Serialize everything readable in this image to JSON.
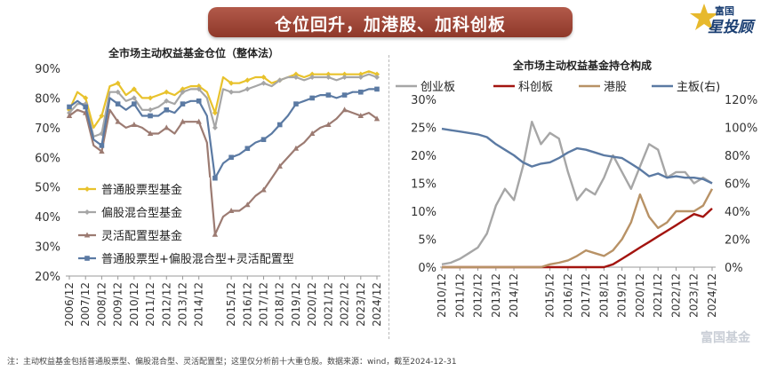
{
  "banner": {
    "title": "仓位回升，加港股、加科创板"
  },
  "brand": {
    "top": "富国",
    "main": "星投顾"
  },
  "watermark": "富国基金",
  "footnote": "注：主动权益基金包括普通股票型、偏股混合型、灵活配置型；这里仅分析前十大重仓股。数据来源：wind，截至2024-12-31",
  "colors": {
    "banner": "#9c4435",
    "brand": "#1b3f73"
  },
  "chart_data": [
    {
      "type": "line",
      "title": "全市场主动权益基金仓位（整体法）",
      "x": [
        "2006/12",
        "2007/06",
        "2007/12",
        "2008/06",
        "2008/12",
        "2009/06",
        "2009/12",
        "2010/06",
        "2010/12",
        "2011/06",
        "2011/12",
        "2012/06",
        "2012/12",
        "2013/06",
        "2013/12",
        "2014/06",
        "2014/12",
        "2015/03",
        "2015/06",
        "2015/09",
        "2015/12",
        "2016/06",
        "2016/12",
        "2017/06",
        "2017/12",
        "2018/06",
        "2018/12",
        "2019/06",
        "2019/12",
        "2020/06",
        "2020/12",
        "2021/06",
        "2021/12",
        "2022/06",
        "2022/12",
        "2023/06",
        "2023/12",
        "2024/06",
        "2024/12"
      ],
      "x_ticks": [
        "2006/12",
        "2007/12",
        "2008/12",
        "2009/12",
        "2010/12",
        "2011/12",
        "2012/12",
        "2013/12",
        "2014/12",
        "2015/12",
        "2016/12",
        "2017/12",
        "2018/12",
        "2019/12",
        "2020/12",
        "2021/12",
        "2022/12",
        "2023/12",
        "2024/12"
      ],
      "y_ticks": [
        "20%",
        "30%",
        "40%",
        "50%",
        "60%",
        "70%",
        "80%",
        "90%"
      ],
      "ylim": [
        20,
        90
      ],
      "series": [
        {
          "name": "普通股票型基金",
          "color": "#e8c22c",
          "marker": "diamond",
          "values": [
            76,
            82,
            80,
            70,
            74,
            84,
            85,
            81,
            83,
            80,
            80,
            81,
            82,
            81,
            83,
            84,
            84,
            82,
            75,
            87,
            85,
            85,
            86,
            87,
            87,
            85,
            86,
            87,
            88,
            87,
            88,
            88,
            88,
            88,
            88,
            88,
            88,
            89,
            88
          ]
        },
        {
          "name": "偏股混合型基金",
          "color": "#a6a6a6",
          "marker": "diamond",
          "values": [
            75,
            78,
            78,
            67,
            68,
            82,
            82,
            79,
            80,
            76,
            76,
            77,
            79,
            78,
            82,
            83,
            83,
            80,
            70,
            83,
            82,
            82,
            83,
            84,
            85,
            84,
            86,
            87,
            87,
            86,
            87,
            87,
            87,
            86,
            87,
            87,
            87,
            88,
            87
          ]
        },
        {
          "name": "灵活配置型基金",
          "color": "#9c7b72",
          "marker": "triangle",
          "values": [
            74,
            76,
            75,
            64,
            62,
            76,
            72,
            70,
            71,
            70,
            68,
            68,
            70,
            68,
            72,
            72,
            72,
            65,
            34,
            40,
            42,
            42,
            44,
            47,
            49,
            53,
            57,
            60,
            63,
            65,
            68,
            70,
            71,
            73,
            76,
            75,
            74,
            75,
            73
          ]
        },
        {
          "name": "普通股票型+偏股混合型+灵活配置型",
          "color": "#5b7aa3",
          "marker": "square",
          "values": [
            77,
            79,
            77,
            66,
            64,
            80,
            78,
            76,
            78,
            74,
            74,
            74,
            76,
            75,
            78,
            79,
            79,
            74,
            53,
            58,
            60,
            61,
            63,
            65,
            66,
            68,
            71,
            74,
            78,
            79,
            80,
            81,
            81,
            80,
            81,
            82,
            82,
            83,
            83
          ]
        }
      ]
    },
    {
      "type": "line",
      "title": "全市场主动权益基金持仓构成",
      "x": [
        "2010/12",
        "2011/06",
        "2011/12",
        "2012/06",
        "2012/12",
        "2013/06",
        "2013/12",
        "2014/06",
        "2014/12",
        "2015/03",
        "2015/06",
        "2015/09",
        "2015/12",
        "2016/06",
        "2016/12",
        "2017/06",
        "2017/12",
        "2018/06",
        "2018/12",
        "2019/06",
        "2019/12",
        "2020/06",
        "2020/12",
        "2021/06",
        "2021/12",
        "2022/06",
        "2022/12",
        "2023/06",
        "2023/12",
        "2024/06",
        "2024/12"
      ],
      "x_ticks": [
        "2010/12",
        "2011/12",
        "2012/12",
        "2013/12",
        "2014/12",
        "2015/12",
        "2016/12",
        "2017/12",
        "2018/12",
        "2019/12",
        "2020/12",
        "2021/12",
        "2022/12",
        "2023/12",
        "2024/12"
      ],
      "y_left_ticks": [
        "0%",
        "5%",
        "10%",
        "15%",
        "20%",
        "25%",
        "30%"
      ],
      "y_right_ticks": [
        "0%",
        "20%",
        "40%",
        "60%",
        "80%",
        "100%",
        "120%"
      ],
      "ylim_left": [
        0,
        30
      ],
      "ylim_right": [
        0,
        120
      ],
      "series": [
        {
          "name": "创业板",
          "color": "#a6a6a6",
          "axis": "left",
          "values": [
            0.5,
            0.8,
            1.5,
            2.5,
            3.5,
            6,
            11,
            14,
            12,
            18,
            26,
            22,
            24,
            23,
            17,
            12,
            14,
            13,
            16,
            20,
            17,
            14,
            18,
            22,
            21,
            16,
            17,
            17,
            15,
            16,
            15
          ]
        },
        {
          "name": "科创板",
          "color": "#a3140f",
          "axis": "left",
          "values": [
            0,
            0,
            0,
            0,
            0,
            0,
            0,
            0,
            0,
            0,
            0,
            0,
            0,
            0,
            0,
            0,
            0,
            0,
            0,
            0.5,
            1.5,
            2.5,
            3.5,
            4.5,
            5.5,
            6.5,
            7.5,
            8.5,
            9.5,
            9,
            10.5
          ]
        },
        {
          "name": "港股",
          "color": "#b89266",
          "axis": "left",
          "values": [
            0,
            0,
            0,
            0,
            0,
            0,
            0,
            0,
            0,
            0,
            0,
            0,
            0.5,
            0.8,
            1.2,
            2,
            3,
            2.5,
            2,
            3,
            5,
            8,
            13,
            9,
            7,
            8,
            10,
            10,
            10,
            11,
            14
          ]
        },
        {
          "name": "主板(右)",
          "color": "#5b7aa3",
          "axis": "right",
          "values": [
            99,
            98,
            97,
            96,
            95,
            93,
            88,
            84,
            80,
            75,
            72,
            74,
            75,
            78,
            82,
            85,
            84,
            82,
            80,
            79,
            78,
            74,
            70,
            65,
            67,
            64,
            65,
            64,
            64,
            63,
            60
          ]
        }
      ]
    }
  ]
}
